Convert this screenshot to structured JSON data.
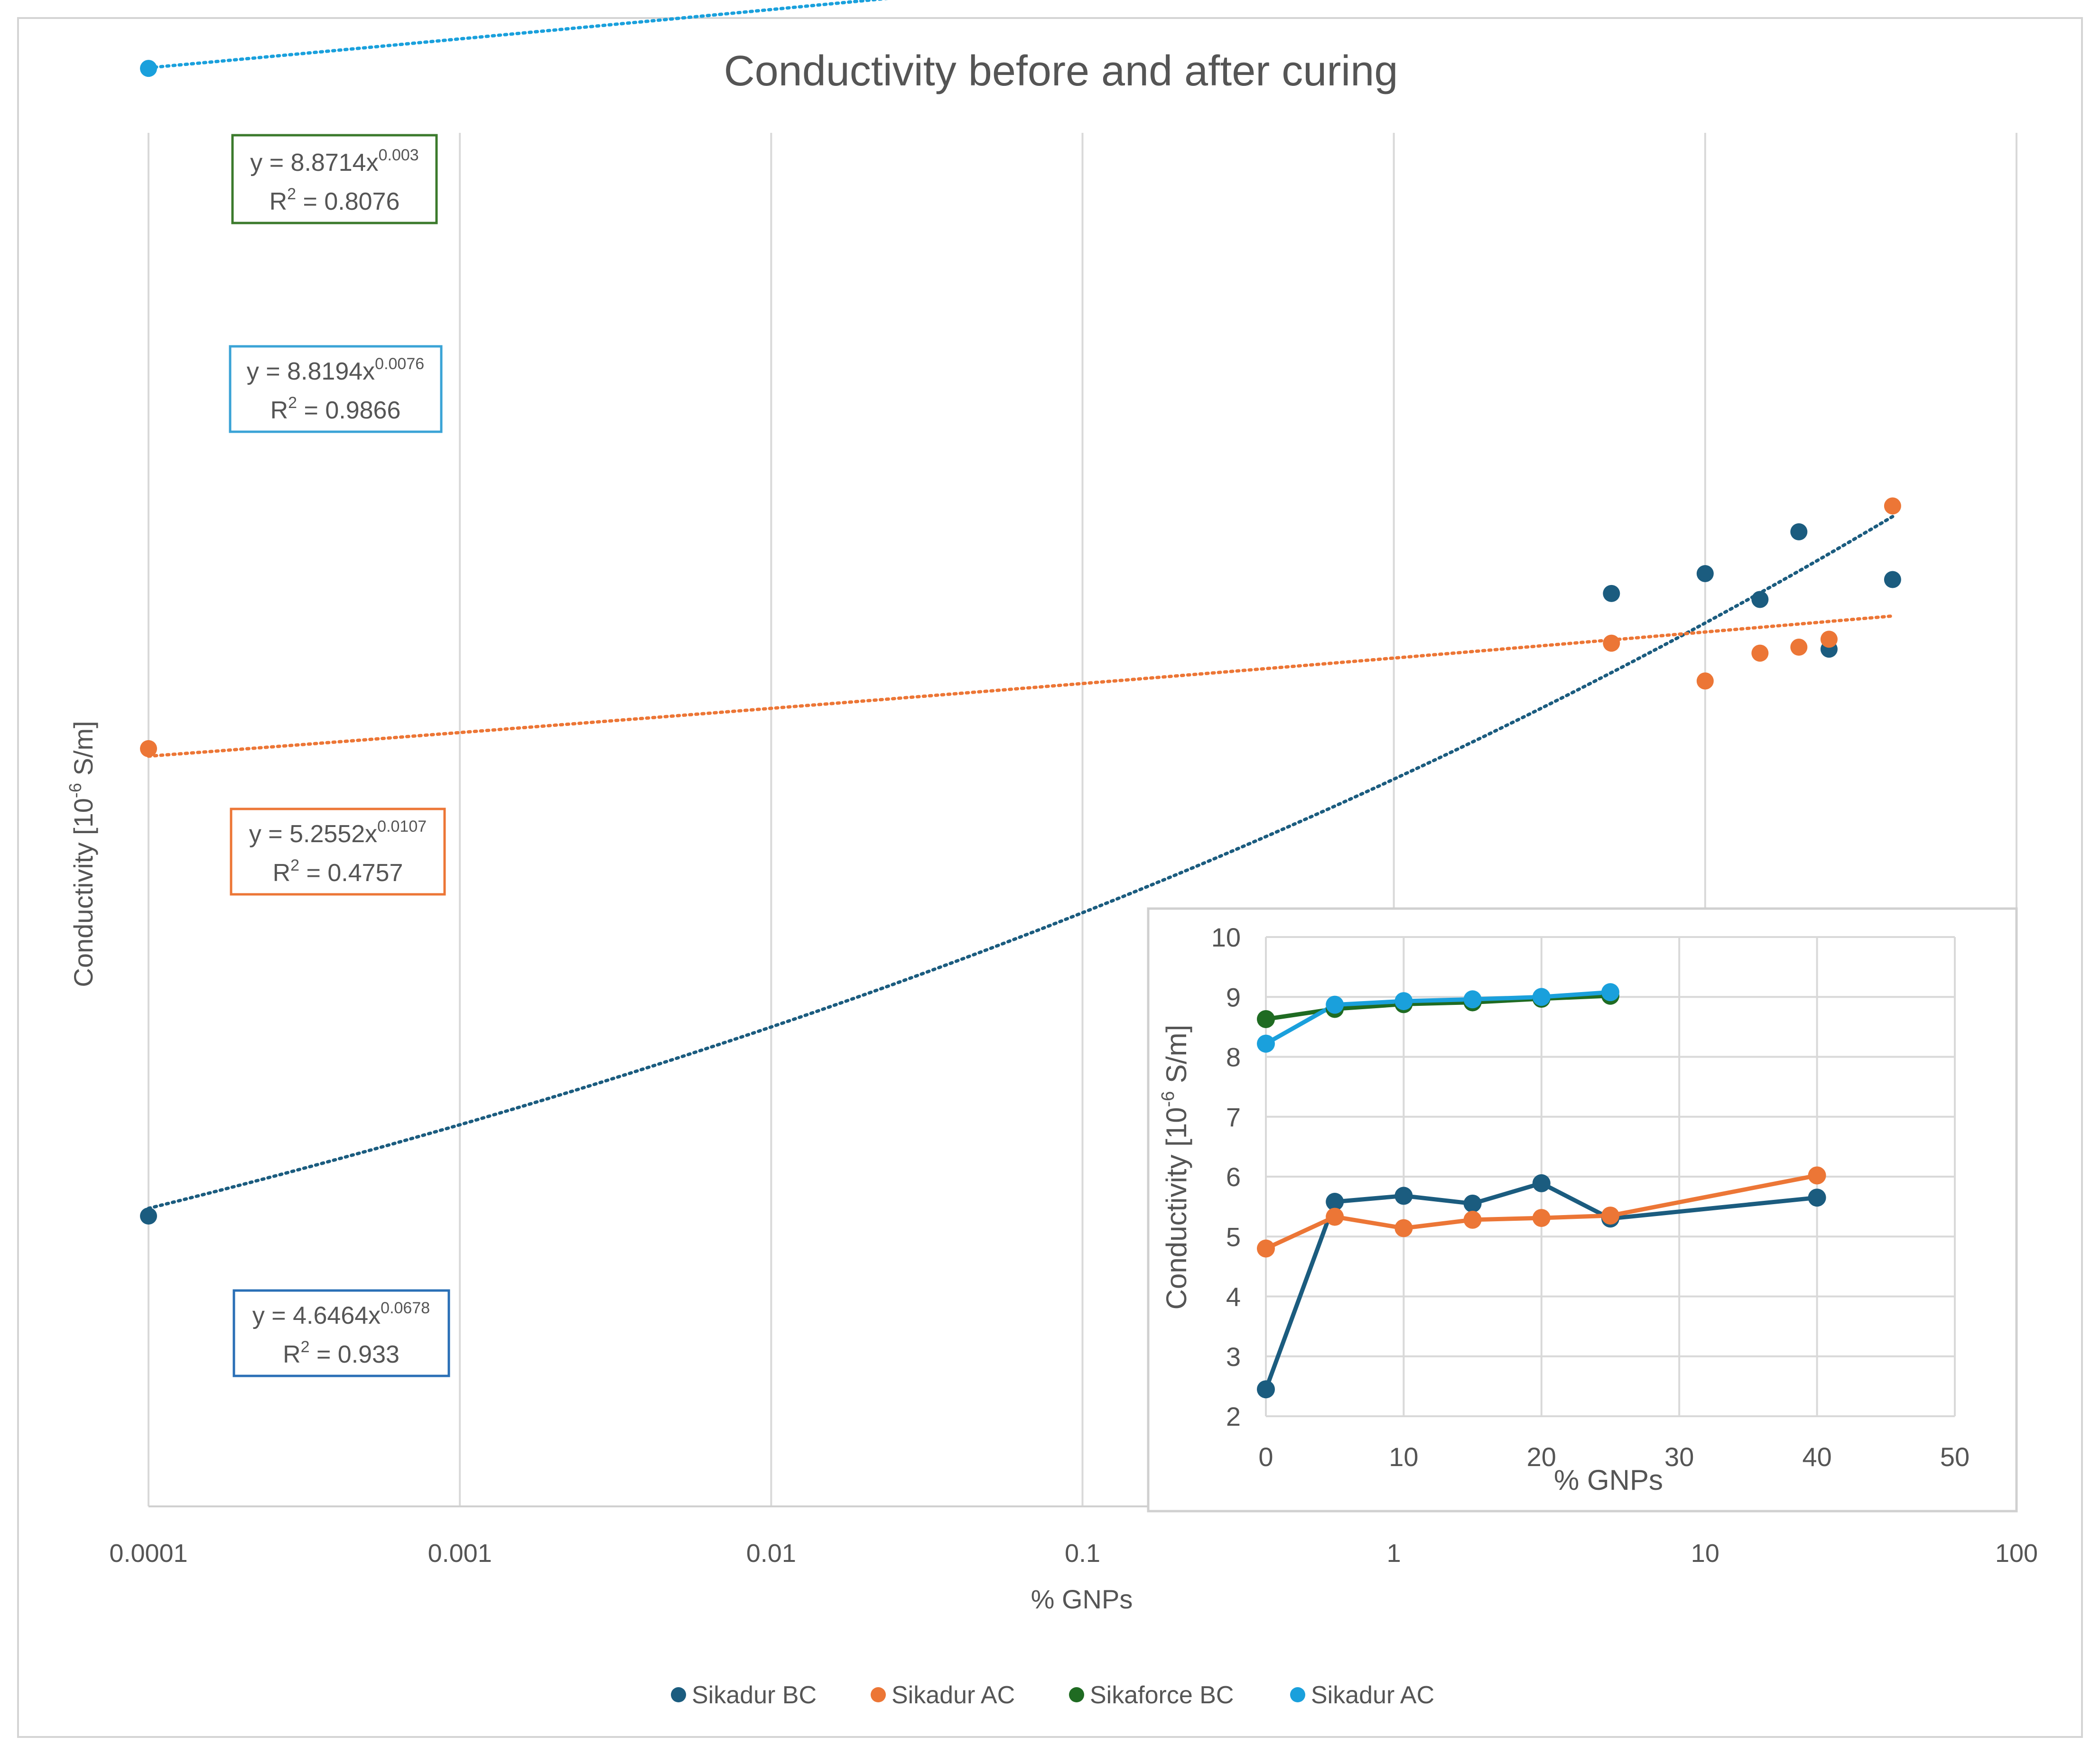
{
  "chart_data": [
    {
      "type": "scatter",
      "title": "Conductivity before and after curing",
      "xlabel": "% GNPs",
      "ylabel": "Conductivity [10",
      "ylabel_sup": "-6",
      "ylabel_unit": " S/m]",
      "x_scale": "log",
      "xlim": [
        0.0001,
        100
      ],
      "x_ticks": [
        "0.0001",
        "0.001",
        "0.01",
        "0.1",
        "1",
        "10",
        "100"
      ],
      "y_axis_labels_shown": false,
      "grid": "vertical",
      "legend": "bottom",
      "series": [
        {
          "name": "Sikadur BC",
          "color": "#1b5c7f",
          "x": [
            0.0001,
            5,
            10,
            15,
            20,
            25,
            40
          ],
          "y": [
            2.45,
            5.58,
            5.68,
            5.55,
            5.89,
            5.3,
            5.65
          ],
          "trendline": {
            "type": "power",
            "a": 4.6464,
            "b": 0.0678,
            "color": "#1b5c7f",
            "eq_prefix": "y = 4.6464x",
            "eq_exp": "0.0678",
            "r2_prefix": "R",
            "r2_sup": "2",
            "r2_value": " = 0.933",
            "box_color": "#2a6fb6"
          }
        },
        {
          "name": "Sikadur AC",
          "color": "#ec7636",
          "x": [
            0.0001,
            5,
            10,
            15,
            20,
            25,
            40
          ],
          "y": [
            4.8,
            5.33,
            5.14,
            5.28,
            5.31,
            5.35,
            6.02
          ],
          "trendline": {
            "type": "power",
            "a": 5.2552,
            "b": 0.0107,
            "color": "#ec7636",
            "eq_prefix": "y = 5.2552x",
            "eq_exp": "0.0107",
            "r2_prefix": "R",
            "r2_sup": "2",
            "r2_value": " = 0.4757",
            "box_color": "#ec7636"
          }
        },
        {
          "name": "Sikaforce BC",
          "color": "#1f6b22",
          "x": [
            0.0001,
            5,
            10,
            15,
            20,
            25
          ],
          "y": [
            8.63,
            8.8,
            8.88,
            8.91,
            8.97,
            9.02
          ],
          "trendline": {
            "type": "power",
            "a": 8.8714,
            "b": 0.003,
            "color": "#1f6b22",
            "eq_prefix": "y = 8.8714x",
            "eq_exp": "0.003",
            "r2_prefix": "R",
            "r2_sup": "2",
            "r2_value": " = 0.8076",
            "box_color": "#3b7a2c"
          }
        },
        {
          "name": "Sikadur AC",
          "color": "#1aa0dc",
          "x": [
            0.0001,
            5,
            10,
            15,
            20,
            25
          ],
          "y": [
            8.22,
            8.87,
            8.93,
            8.96,
            9.0,
            9.08
          ],
          "trendline": {
            "type": "power",
            "a": 8.8194,
            "b": 0.0076,
            "color": "#1aa0dc",
            "eq_prefix": "y = 8.8194x",
            "eq_exp": "0.0076",
            "r2_prefix": "R",
            "r2_sup": "2",
            "r2_value": " = 0.9866",
            "box_color": "#3aa3d6"
          }
        }
      ]
    },
    {
      "type": "line",
      "title": "",
      "xlabel": "% GNPs",
      "ylabel": "Conductivity [10",
      "ylabel_sup": "-6",
      "ylabel_unit": " S/m]",
      "xlim": [
        0,
        50
      ],
      "ylim": [
        2,
        10
      ],
      "x_ticks": [
        "0",
        "10",
        "20",
        "30",
        "40",
        "50"
      ],
      "y_ticks": [
        "2",
        "3",
        "4",
        "5",
        "6",
        "7",
        "8",
        "9",
        "10"
      ],
      "grid": "both",
      "series": [
        {
          "name": "Sikadur BC",
          "color": "#1b5c7f",
          "x": [
            0,
            5,
            10,
            15,
            20,
            25,
            40
          ],
          "y": [
            2.45,
            5.58,
            5.68,
            5.55,
            5.89,
            5.3,
            5.65
          ]
        },
        {
          "name": "Sikadur AC",
          "color": "#ec7636",
          "x": [
            0,
            5,
            10,
            15,
            20,
            25,
            40
          ],
          "y": [
            4.8,
            5.33,
            5.14,
            5.28,
            5.31,
            5.35,
            6.02
          ]
        },
        {
          "name": "Sikaforce BC",
          "color": "#1f6b22",
          "x": [
            0,
            5,
            10,
            15,
            20,
            25
          ],
          "y": [
            8.63,
            8.8,
            8.88,
            8.91,
            8.97,
            9.02
          ]
        },
        {
          "name": "Sikadur AC",
          "color": "#1aa0dc",
          "x": [
            0,
            5,
            10,
            15,
            20,
            25
          ],
          "y": [
            8.22,
            8.87,
            8.93,
            8.96,
            9.0,
            9.08
          ]
        }
      ]
    }
  ]
}
